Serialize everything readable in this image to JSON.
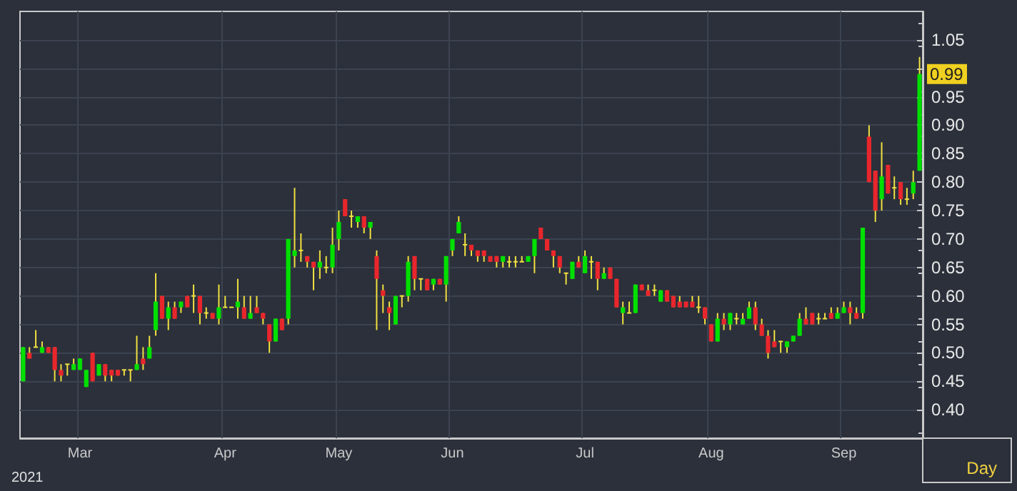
{
  "chart_data": {
    "type": "candlestick",
    "xlabel": "Day",
    "annotations": [
      "2021",
      {
        "text": "0.99",
        "y": 0.99
      }
    ],
    "categories": [
      null,
      null,
      null,
      null,
      null,
      null,
      null,
      null,
      null,
      "Mar",
      null,
      null,
      null,
      null,
      null,
      null,
      null,
      null,
      null,
      null,
      null,
      null,
      null,
      null,
      null,
      null,
      null,
      null,
      null,
      null,
      null,
      null,
      "Apr",
      null,
      null,
      null,
      null,
      null,
      null,
      null,
      null,
      null,
      null,
      null,
      null,
      null,
      null,
      null,
      null,
      null,
      "May",
      null,
      null,
      null,
      null,
      null,
      null,
      null,
      null,
      null,
      null,
      null,
      null,
      null,
      null,
      null,
      null,
      null,
      "Jun",
      null,
      null,
      null,
      null,
      null,
      null,
      null,
      null,
      null,
      null,
      null,
      null,
      null,
      null,
      null,
      null,
      null,
      null,
      null,
      null,
      "Jul",
      null,
      null,
      null,
      null,
      null,
      null,
      null,
      null,
      null,
      null,
      null,
      null,
      null,
      null,
      null,
      null,
      null,
      null,
      null,
      "Aug",
      null,
      null,
      null,
      null,
      null,
      null,
      null,
      null,
      null,
      null,
      null,
      null,
      null,
      null,
      null,
      null,
      null,
      null,
      null,
      null,
      "Sep",
      null,
      null,
      null,
      null,
      null,
      null,
      null,
      null,
      null,
      null,
      null,
      null
    ],
    "ohlc": [
      [
        0.45,
        0.51,
        0.45,
        0.51
      ],
      [
        0.5,
        0.51,
        0.49,
        0.49
      ],
      [
        0.51,
        0.54,
        0.51,
        0.51
      ],
      [
        0.5,
        0.52,
        0.5,
        0.51
      ],
      [
        0.51,
        0.51,
        0.5,
        0.5
      ],
      [
        0.51,
        0.51,
        0.45,
        0.47
      ],
      [
        0.47,
        0.48,
        0.45,
        0.46
      ],
      [
        0.48,
        0.48,
        0.46,
        0.48
      ],
      [
        0.47,
        0.49,
        0.47,
        0.48
      ],
      [
        0.47,
        0.49,
        0.47,
        0.49
      ],
      [
        0.44,
        0.47,
        0.44,
        0.47
      ],
      [
        0.5,
        0.5,
        0.45,
        0.45
      ],
      [
        0.46,
        0.48,
        0.46,
        0.48
      ],
      [
        0.48,
        0.48,
        0.45,
        0.46
      ],
      [
        0.47,
        0.47,
        0.45,
        0.46
      ],
      [
        0.47,
        0.47,
        0.46,
        0.46
      ],
      [
        0.47,
        0.47,
        0.46,
        0.47
      ],
      [
        0.47,
        0.47,
        0.45,
        0.47
      ],
      [
        0.47,
        0.53,
        0.47,
        0.48
      ],
      [
        0.49,
        0.51,
        0.47,
        0.48
      ],
      [
        0.49,
        0.53,
        0.49,
        0.51
      ],
      [
        0.54,
        0.64,
        0.53,
        0.59
      ],
      [
        0.6,
        0.6,
        0.56,
        0.56
      ],
      [
        0.56,
        0.59,
        0.54,
        0.58
      ],
      [
        0.58,
        0.59,
        0.56,
        0.56
      ],
      [
        0.58,
        0.59,
        0.57,
        0.59
      ],
      [
        0.6,
        0.6,
        0.58,
        0.58
      ],
      [
        0.6,
        0.62,
        0.57,
        0.6
      ],
      [
        0.6,
        0.6,
        0.55,
        0.57
      ],
      [
        0.57,
        0.58,
        0.56,
        0.57
      ],
      [
        0.57,
        0.57,
        0.56,
        0.56
      ],
      [
        0.56,
        0.62,
        0.55,
        0.58
      ],
      [
        0.58,
        0.6,
        0.58,
        0.58
      ],
      [
        0.58,
        0.58,
        0.58,
        0.58
      ],
      [
        0.58,
        0.63,
        0.56,
        0.59
      ],
      [
        0.58,
        0.6,
        0.56,
        0.56
      ],
      [
        0.56,
        0.6,
        0.56,
        0.57
      ],
      [
        0.58,
        0.6,
        0.57,
        0.57
      ],
      [
        0.57,
        0.57,
        0.55,
        0.56
      ],
      [
        0.55,
        0.55,
        0.5,
        0.52
      ],
      [
        0.52,
        0.56,
        0.52,
        0.56
      ],
      [
        0.56,
        0.56,
        0.54,
        0.54
      ],
      [
        0.56,
        0.7,
        0.55,
        0.7
      ],
      [
        0.67,
        0.79,
        0.65,
        0.68
      ],
      [
        0.68,
        0.71,
        0.66,
        0.68
      ],
      [
        0.67,
        0.67,
        0.65,
        0.66
      ],
      [
        0.66,
        0.66,
        0.61,
        0.65
      ],
      [
        0.65,
        0.68,
        0.63,
        0.66
      ],
      [
        0.65,
        0.67,
        0.64,
        0.65
      ],
      [
        0.65,
        0.72,
        0.64,
        0.69
      ],
      [
        0.7,
        0.75,
        0.68,
        0.73
      ],
      [
        0.77,
        0.77,
        0.74,
        0.74
      ],
      [
        0.74,
        0.75,
        0.72,
        0.74
      ],
      [
        0.73,
        0.74,
        0.72,
        0.74
      ],
      [
        0.74,
        0.74,
        0.71,
        0.72
      ],
      [
        0.72,
        0.73,
        0.7,
        0.73
      ],
      [
        0.67,
        0.68,
        0.54,
        0.63
      ],
      [
        0.61,
        0.62,
        0.57,
        0.6
      ],
      [
        0.58,
        0.59,
        0.54,
        0.57
      ],
      [
        0.55,
        0.6,
        0.55,
        0.6
      ],
      [
        0.6,
        0.6,
        0.58,
        0.6
      ],
      [
        0.6,
        0.67,
        0.59,
        0.66
      ],
      [
        0.67,
        0.67,
        0.61,
        0.63
      ],
      [
        0.63,
        0.63,
        0.61,
        0.63
      ],
      [
        0.63,
        0.63,
        0.61,
        0.61
      ],
      [
        0.62,
        0.63,
        0.61,
        0.63
      ],
      [
        0.63,
        0.63,
        0.62,
        0.62
      ],
      [
        0.62,
        0.67,
        0.59,
        0.67
      ],
      [
        0.68,
        0.7,
        0.67,
        0.7
      ],
      [
        0.71,
        0.74,
        0.71,
        0.73
      ],
      [
        0.69,
        0.71,
        0.67,
        0.69
      ],
      [
        0.69,
        0.69,
        0.67,
        0.68
      ],
      [
        0.68,
        0.68,
        0.66,
        0.67
      ],
      [
        0.68,
        0.68,
        0.66,
        0.67
      ],
      [
        0.67,
        0.67,
        0.66,
        0.66
      ],
      [
        0.67,
        0.67,
        0.65,
        0.66
      ],
      [
        0.66,
        0.67,
        0.65,
        0.67
      ],
      [
        0.66,
        0.67,
        0.65,
        0.66
      ],
      [
        0.66,
        0.67,
        0.65,
        0.66
      ],
      [
        0.66,
        0.67,
        0.66,
        0.66
      ],
      [
        0.66,
        0.67,
        0.66,
        0.67
      ],
      [
        0.67,
        0.7,
        0.64,
        0.7
      ],
      [
        0.72,
        0.72,
        0.7,
        0.7
      ],
      [
        0.7,
        0.7,
        0.68,
        0.68
      ],
      [
        0.68,
        0.68,
        0.65,
        0.67
      ],
      [
        0.67,
        0.67,
        0.64,
        0.65
      ],
      [
        0.64,
        0.64,
        0.62,
        0.64
      ],
      [
        0.63,
        0.66,
        0.63,
        0.66
      ],
      [
        0.66,
        0.67,
        0.65,
        0.65
      ],
      [
        0.64,
        0.68,
        0.64,
        0.67
      ],
      [
        0.66,
        0.67,
        0.63,
        0.66
      ],
      [
        0.66,
        0.66,
        0.61,
        0.63
      ],
      [
        0.63,
        0.65,
        0.63,
        0.64
      ],
      [
        0.65,
        0.65,
        0.63,
        0.63
      ],
      [
        0.63,
        0.63,
        0.58,
        0.58
      ],
      [
        0.57,
        0.59,
        0.55,
        0.58
      ],
      [
        0.57,
        0.59,
        0.57,
        0.57
      ],
      [
        0.57,
        0.62,
        0.57,
        0.62
      ],
      [
        0.62,
        0.62,
        0.61,
        0.61
      ],
      [
        0.61,
        0.62,
        0.6,
        0.6
      ],
      [
        0.61,
        0.62,
        0.6,
        0.61
      ],
      [
        0.59,
        0.61,
        0.59,
        0.61
      ],
      [
        0.61,
        0.61,
        0.59,
        0.59
      ],
      [
        0.6,
        0.6,
        0.58,
        0.58
      ],
      [
        0.59,
        0.6,
        0.58,
        0.58
      ],
      [
        0.59,
        0.59,
        0.58,
        0.58
      ],
      [
        0.59,
        0.6,
        0.58,
        0.58
      ],
      [
        0.58,
        0.6,
        0.57,
        0.58
      ],
      [
        0.58,
        0.58,
        0.55,
        0.56
      ],
      [
        0.55,
        0.55,
        0.52,
        0.52
      ],
      [
        0.52,
        0.57,
        0.52,
        0.56
      ],
      [
        0.56,
        0.57,
        0.54,
        0.55
      ],
      [
        0.55,
        0.57,
        0.54,
        0.57
      ],
      [
        0.56,
        0.57,
        0.55,
        0.56
      ],
      [
        0.55,
        0.57,
        0.55,
        0.56
      ],
      [
        0.56,
        0.59,
        0.56,
        0.58
      ],
      [
        0.58,
        0.59,
        0.54,
        0.55
      ],
      [
        0.55,
        0.56,
        0.53,
        0.53
      ],
      [
        0.53,
        0.54,
        0.49,
        0.5
      ],
      [
        0.52,
        0.54,
        0.51,
        0.51
      ],
      [
        0.52,
        0.52,
        0.5,
        0.52
      ],
      [
        0.51,
        0.52,
        0.5,
        0.52
      ],
      [
        0.52,
        0.53,
        0.52,
        0.53
      ],
      [
        0.53,
        0.57,
        0.53,
        0.56
      ],
      [
        0.56,
        0.58,
        0.55,
        0.55
      ],
      [
        0.57,
        0.57,
        0.55,
        0.55
      ],
      [
        0.56,
        0.57,
        0.55,
        0.56
      ],
      [
        0.56,
        0.57,
        0.56,
        0.56
      ],
      [
        0.57,
        0.58,
        0.56,
        0.56
      ],
      [
        0.56,
        0.58,
        0.56,
        0.57
      ],
      [
        0.57,
        0.59,
        0.57,
        0.58
      ],
      [
        0.58,
        0.59,
        0.55,
        0.57
      ],
      [
        0.57,
        0.58,
        0.56,
        0.56
      ],
      [
        0.57,
        0.72,
        0.56,
        0.72
      ],
      [
        0.88,
        0.9,
        0.8,
        0.8
      ],
      [
        0.82,
        0.82,
        0.73,
        0.75
      ],
      [
        0.77,
        0.87,
        0.75,
        0.81
      ],
      [
        0.83,
        0.83,
        0.78,
        0.78
      ],
      [
        0.79,
        0.81,
        0.77,
        0.79
      ],
      [
        0.8,
        0.8,
        0.76,
        0.77
      ],
      [
        0.77,
        0.79,
        0.76,
        0.77
      ],
      [
        0.78,
        0.82,
        0.77,
        0.8
      ],
      [
        0.82,
        1.02,
        0.82,
        0.99
      ]
    ],
    "ylim": [
      0.35,
      1.1
    ],
    "yticks": [
      {
        "value": 0.4,
        "label": "0.40"
      },
      {
        "value": 0.45,
        "label": "0.45"
      },
      {
        "value": 0.5,
        "label": "0.50"
      },
      {
        "value": 0.55,
        "label": "0.55"
      },
      {
        "value": 0.6,
        "label": "0.60"
      },
      {
        "value": 0.65,
        "label": "0.65"
      },
      {
        "value": 0.7,
        "label": "0.70"
      },
      {
        "value": 0.75,
        "label": "0.75"
      },
      {
        "value": 0.8,
        "label": "0.80"
      },
      {
        "value": 0.85,
        "label": "0.85"
      },
      {
        "value": 0.9,
        "label": "0.90"
      },
      {
        "value": 0.95,
        "label": "0.95"
      },
      {
        "value": 1.0,
        "label": null
      },
      {
        "value": 1.05,
        "label": "1.05"
      }
    ],
    "grid": true
  }
}
